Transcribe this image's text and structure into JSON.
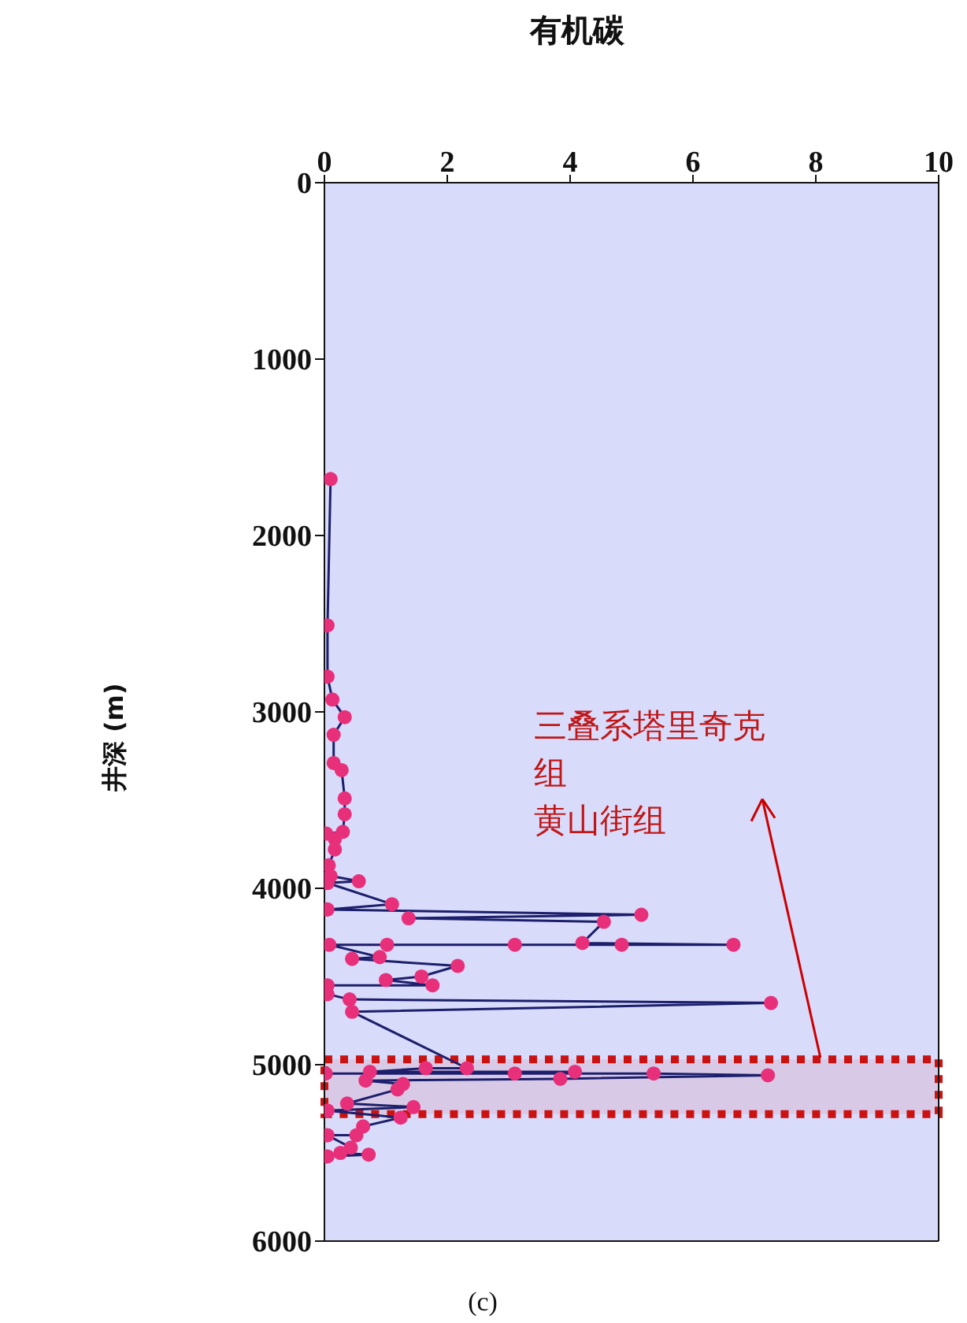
{
  "chart_data": {
    "type": "line",
    "xlabel": "有机碳",
    "ylabel": "井深 (m)",
    "x": [
      0.1,
      0.05,
      0.05,
      0.13,
      0.33,
      0.15,
      0.15,
      0.28,
      0.33,
      0.33,
      0.3,
      0.03,
      0.17,
      0.17,
      0.07,
      0.1,
      0.56,
      0.05,
      1.1,
      0.05,
      5.16,
      1.37,
      4.55,
      4.2,
      6.66,
      3.1,
      4.84,
      1.02,
      0.08,
      0.9,
      0.45,
      2.17,
      1.58,
      1.0,
      1.76,
      0.05,
      0.05,
      0.41,
      7.27,
      0.45,
      2.32,
      1.65,
      0.74,
      4.08,
      0.02,
      3.1,
      5.36,
      7.22,
      3.84,
      0.67,
      1.28,
      1.19,
      0.37,
      1.45,
      0.05,
      1.24,
      0.63,
      0.52,
      0.05,
      0.43,
      0.26,
      0.72,
      0.05
    ],
    "series": [
      {
        "color": "#1c1f6b",
        "values": [
          1680,
          2510,
          2800,
          2930,
          3030,
          3130,
          3290,
          3330,
          3490,
          3580,
          3680,
          3690,
          3720,
          3780,
          3870,
          3930,
          3960,
          3970,
          4090,
          4120,
          4150,
          4170,
          4190,
          4310,
          4320,
          4320,
          4320,
          4320,
          4320,
          4390,
          4400,
          4440,
          4500,
          4520,
          4550,
          4550,
          4600,
          4630,
          4650,
          4700,
          5020,
          5020,
          5040,
          5040,
          5050,
          5050,
          5050,
          5060,
          5080,
          5090,
          5110,
          5140,
          5220,
          5240,
          5260,
          5300,
          5350,
          5400,
          5400,
          5470,
          5500,
          5510,
          5520
        ]
      }
    ],
    "marker": "circle",
    "line_style": "solid",
    "xlim": [
      0,
      10
    ],
    "xticks": [
      0,
      2,
      4,
      6,
      8,
      10
    ],
    "ylim": [
      6000,
      0
    ],
    "yticks": [
      0,
      1000,
      2000,
      3000,
      4000,
      5000,
      6000
    ],
    "grid": false,
    "bands": [
      {
        "axis": "y",
        "from": 4970,
        "to": 5280,
        "color": "#cc1111"
      }
    ],
    "annotations": [
      "三叠系塔里奇克组",
      "黄山街组",
      "(c)"
    ]
  }
}
